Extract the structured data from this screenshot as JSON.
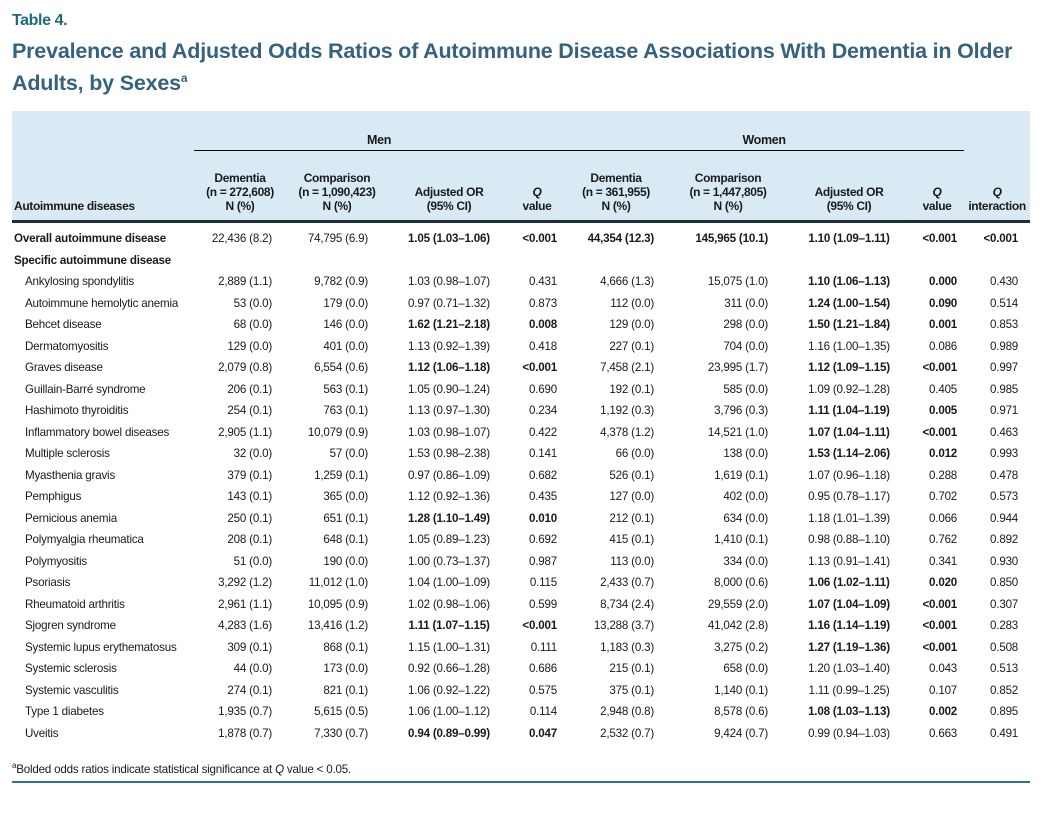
{
  "table_label": "Table 4.",
  "title": "Prevalence and Adjusted Odds Ratios of Autoimmune Disease Associations With Dementia in Older Adults, by Sexes",
  "title_sup": "a",
  "colors": {
    "accent_teal": "#1b6a7e",
    "title_blue": "#35627f",
    "header_bg": "#d9eaf5",
    "rule_dark": "#1e2d36",
    "rule_bottom": "#31708f"
  },
  "columns": {
    "disease": "Autoimmune diseases",
    "men": {
      "group": "Men",
      "dementia": {
        "l1": "Dementia",
        "l2": "(n = 272,608)",
        "l3": "N (%)"
      },
      "comparison": {
        "l1": "Comparison",
        "l2": "(n = 1,090,423)",
        "l3": "N (%)"
      },
      "or": {
        "l1": "Adjusted OR",
        "l2": "(95% CI)"
      },
      "q": {
        "symbol": "Q",
        "label": "value"
      }
    },
    "women": {
      "group": "Women",
      "dementia": {
        "l1": "Dementia",
        "l2": "(n = 361,955)",
        "l3": "N (%)"
      },
      "comparison": {
        "l1": "Comparison",
        "l2": "(n = 1,447,805)",
        "l3": "N (%)"
      },
      "or": {
        "l1": "Adjusted OR",
        "l2": "(95% CI)"
      },
      "q": {
        "symbol": "Q",
        "label": "value"
      }
    },
    "q_interaction": {
      "symbol": "Q",
      "label": "interaction"
    }
  },
  "rows": [
    {
      "label": "Overall autoimmune disease",
      "bold_label": true,
      "indent": false,
      "cells": [
        "22,436 (8.2)",
        "74,795 (6.9)",
        "1.05 (1.03–1.06)",
        "<0.001",
        "44,354 (12.3)",
        "145,965 (10.1)",
        "1.10 (1.09–1.11)",
        "<0.001",
        "<0.001"
      ],
      "bold": [
        2,
        3,
        4,
        5,
        6,
        7,
        8
      ]
    },
    {
      "label": "Specific autoimmune disease",
      "bold_label": true,
      "indent": false,
      "section": true,
      "cells": []
    },
    {
      "label": "Ankylosing spondylitis",
      "indent": true,
      "cells": [
        "2,889 (1.1)",
        "9,782 (0.9)",
        "1.03 (0.98–1.07)",
        "0.431",
        "4,666 (1.3)",
        "15,075 (1.0)",
        "1.10 (1.06–1.13)",
        "0.000",
        "0.430"
      ],
      "bold": [
        6,
        7
      ]
    },
    {
      "label": "Autoimmune hemolytic anemia",
      "indent": true,
      "cells": [
        "53 (0.0)",
        "179 (0.0)",
        "0.97 (0.71–1.32)",
        "0.873",
        "112 (0.0)",
        "311 (0.0)",
        "1.24 (1.00–1.54)",
        "0.090",
        "0.514"
      ],
      "bold": [
        6,
        7
      ]
    },
    {
      "label": "Behcet disease",
      "indent": true,
      "cells": [
        "68 (0.0)",
        "146 (0.0)",
        "1.62 (1.21–2.18)",
        "0.008",
        "129 (0.0)",
        "298 (0.0)",
        "1.50 (1.21–1.84)",
        "0.001",
        "0.853"
      ],
      "bold": [
        2,
        3,
        6,
        7
      ]
    },
    {
      "label": "Dermatomyositis",
      "indent": true,
      "cells": [
        "129 (0.0)",
        "401 (0.0)",
        "1.13 (0.92–1.39)",
        "0.418",
        "227 (0.1)",
        "704 (0.0)",
        "1.16 (1.00–1.35)",
        "0.086",
        "0.989"
      ],
      "bold": []
    },
    {
      "label": "Graves disease",
      "indent": true,
      "cells": [
        "2,079 (0.8)",
        "6,554 (0.6)",
        "1.12 (1.06–1.18)",
        "<0.001",
        "7,458 (2.1)",
        "23,995 (1.7)",
        "1.12 (1.09–1.15)",
        "<0.001",
        "0.997"
      ],
      "bold": [
        2,
        3,
        6,
        7
      ]
    },
    {
      "label": "Guillain-Barré syndrome",
      "indent": true,
      "cells": [
        "206 (0.1)",
        "563 (0.1)",
        "1.05 (0.90–1.24)",
        "0.690",
        "192 (0.1)",
        "585 (0.0)",
        "1.09 (0.92–1.28)",
        "0.405",
        "0.985"
      ],
      "bold": []
    },
    {
      "label": "Hashimoto thyroiditis",
      "indent": true,
      "cells": [
        "254 (0.1)",
        "763 (0.1)",
        "1.13 (0.97–1.30)",
        "0.234",
        "1,192 (0.3)",
        "3,796 (0.3)",
        "1.11 (1.04–1.19)",
        "0.005",
        "0.971"
      ],
      "bold": [
        6,
        7
      ]
    },
    {
      "label": "Inflammatory bowel diseases",
      "indent": true,
      "cells": [
        "2,905 (1.1)",
        "10,079 (0.9)",
        "1.03 (0.98–1.07)",
        "0.422",
        "4,378 (1.2)",
        "14,521 (1.0)",
        "1.07 (1.04–1.11)",
        "<0.001",
        "0.463"
      ],
      "bold": [
        6,
        7
      ]
    },
    {
      "label": "Multiple sclerosis",
      "indent": true,
      "cells": [
        "32 (0.0)",
        "57 (0.0)",
        "1.53 (0.98–2.38)",
        "0.141",
        "66 (0.0)",
        "138 (0.0)",
        "1.53 (1.14–2.06)",
        "0.012",
        "0.993"
      ],
      "bold": [
        6,
        7
      ]
    },
    {
      "label": "Myasthenia gravis",
      "indent": true,
      "cells": [
        "379 (0.1)",
        "1,259 (0.1)",
        "0.97 (0.86–1.09)",
        "0.682",
        "526 (0.1)",
        "1,619 (0.1)",
        "1.07 (0.96–1.18)",
        "0.288",
        "0.478"
      ],
      "bold": []
    },
    {
      "label": "Pemphigus",
      "indent": true,
      "cells": [
        "143 (0.1)",
        "365 (0.0)",
        "1.12 (0.92–1.36)",
        "0.435",
        "127 (0.0)",
        "402 (0.0)",
        "0.95 (0.78–1.17)",
        "0.702",
        "0.573"
      ],
      "bold": []
    },
    {
      "label": "Pernicious anemia",
      "indent": true,
      "cells": [
        "250 (0.1)",
        "651 (0.1)",
        "1.28 (1.10–1.49)",
        "0.010",
        "212 (0.1)",
        "634 (0.0)",
        "1.18 (1.01–1.39)",
        "0.066",
        "0.944"
      ],
      "bold": [
        2,
        3
      ]
    },
    {
      "label": "Polymyalgia rheumatica",
      "indent": true,
      "cells": [
        "208 (0.1)",
        "648 (0.1)",
        "1.05 (0.89–1.23)",
        "0.692",
        "415 (0.1)",
        "1,410 (0.1)",
        "0.98 (0.88–1.10)",
        "0.762",
        "0.892"
      ],
      "bold": []
    },
    {
      "label": "Polymyositis",
      "indent": true,
      "cells": [
        "51 (0.0)",
        "190 (0.0)",
        "1.00 (0.73–1.37)",
        "0.987",
        "113 (0.0)",
        "334 (0.0)",
        "1.13 (0.91–1.41)",
        "0.341",
        "0.930"
      ],
      "bold": []
    },
    {
      "label": "Psoriasis",
      "indent": true,
      "cells": [
        "3,292 (1.2)",
        "11,012 (1.0)",
        "1.04 (1.00–1.09)",
        "0.115",
        "2,433 (0.7)",
        "8,000 (0.6)",
        "1.06 (1.02–1.11)",
        "0.020",
        "0.850"
      ],
      "bold": [
        6,
        7
      ]
    },
    {
      "label": "Rheumatoid arthritis",
      "indent": true,
      "cells": [
        "2,961 (1.1)",
        "10,095 (0.9)",
        "1.02 (0.98–1.06)",
        "0.599",
        "8,734 (2.4)",
        "29,559 (2.0)",
        "1.07 (1.04–1.09)",
        "<0.001",
        "0.307"
      ],
      "bold": [
        6,
        7
      ]
    },
    {
      "label": "Sjogren syndrome",
      "indent": true,
      "cells": [
        "4,283 (1.6)",
        "13,416 (1.2)",
        "1.11 (1.07–1.15)",
        "<0.001",
        "13,288 (3.7)",
        "41,042 (2.8)",
        "1.16 (1.14–1.19)",
        "<0.001",
        "0.283"
      ],
      "bold": [
        2,
        3,
        6,
        7
      ]
    },
    {
      "label": "Systemic lupus erythematosus",
      "indent": true,
      "cells": [
        "309 (0.1)",
        "868 (0.1)",
        "1.15 (1.00–1.31)",
        "0.111",
        "1,183 (0.3)",
        "3,275 (0.2)",
        "1.27 (1.19–1.36)",
        "<0.001",
        "0.508"
      ],
      "bold": [
        6,
        7
      ]
    },
    {
      "label": "Systemic sclerosis",
      "indent": true,
      "cells": [
        "44 (0.0)",
        "173 (0.0)",
        "0.92 (0.66–1.28)",
        "0.686",
        "215 (0.1)",
        "658 (0.0)",
        "1.20 (1.03–1.40)",
        "0.043",
        "0.513"
      ],
      "bold": []
    },
    {
      "label": "Systemic vasculitis",
      "indent": true,
      "cells": [
        "274 (0.1)",
        "821 (0.1)",
        "1.06 (0.92–1.22)",
        "0.575",
        "375 (0.1)",
        "1,140 (0.1)",
        "1.11 (0.99–1.25)",
        "0.107",
        "0.852"
      ],
      "bold": []
    },
    {
      "label": "Type 1 diabetes",
      "indent": true,
      "cells": [
        "1,935 (0.7)",
        "5,615 (0.5)",
        "1.06 (1.00–1.12)",
        "0.114",
        "2,948 (0.8)",
        "8,578 (0.6)",
        "1.08 (1.03–1.13)",
        "0.002",
        "0.895"
      ],
      "bold": [
        6,
        7
      ]
    },
    {
      "label": "Uveitis",
      "indent": true,
      "cells": [
        "1,878 (0.7)",
        "7,330 (0.7)",
        "0.94 (0.89–0.99)",
        "0.047",
        "2,532 (0.7)",
        "9,424 (0.7)",
        "0.99 (0.94–1.03)",
        "0.663",
        "0.491"
      ],
      "bold": [
        2,
        3
      ]
    }
  ],
  "footnote": {
    "sup": "a",
    "before": "Bolded odds ratios indicate statistical significance at ",
    "italic": "Q",
    "after": " value < 0.05."
  }
}
